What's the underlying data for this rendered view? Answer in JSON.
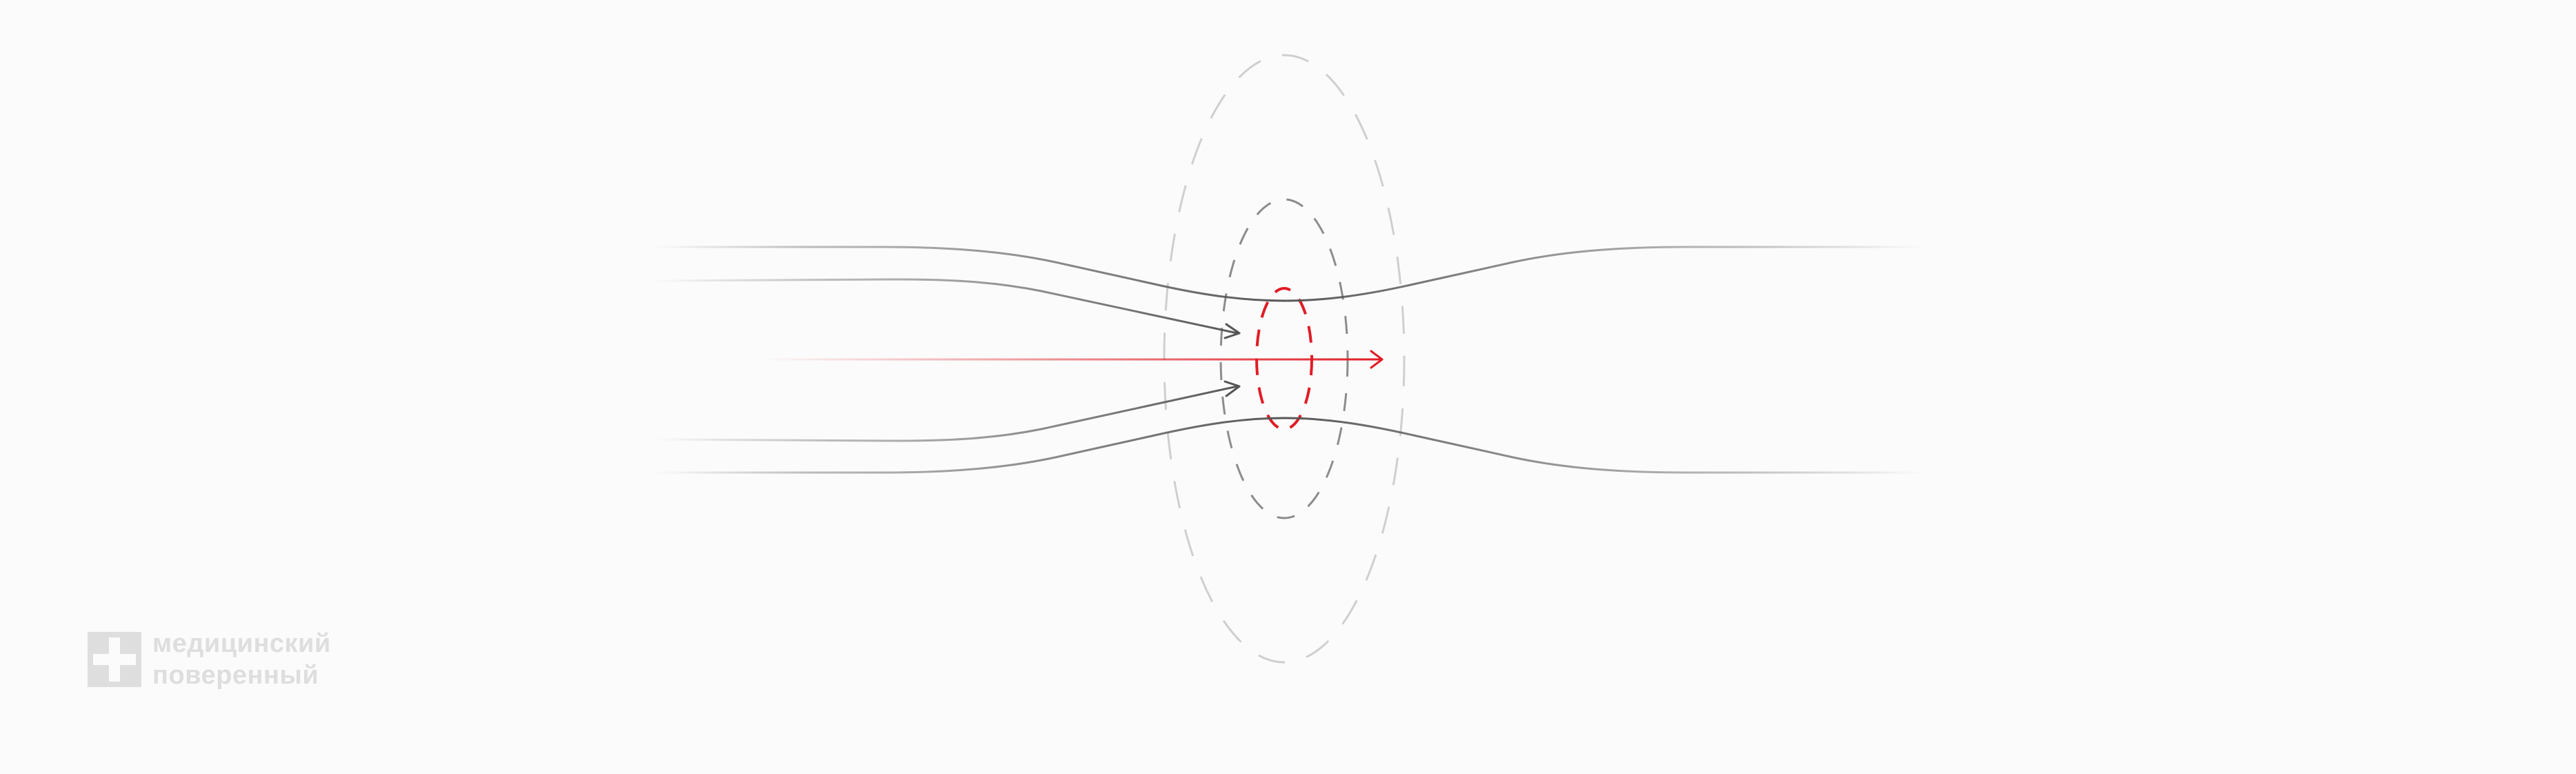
{
  "brand": {
    "line1": "медицинский",
    "line2": "поверенный"
  },
  "colors": {
    "background": "#fbfbfb",
    "wall": "#6a6a6a",
    "flow_arrow": "#7a7a7a",
    "center_arrow": "#e01c24",
    "logo": "#dedede"
  },
  "icons": {
    "logo_mark": "medical-cross-icon"
  }
}
